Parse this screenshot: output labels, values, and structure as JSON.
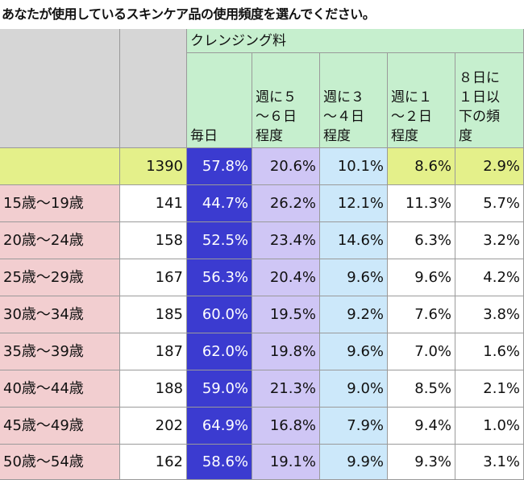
{
  "title": "あなたが使用しているスキンケア品の使用頻度を選んでください。",
  "group_header": "クレンジング料",
  "columns": [
    "毎日",
    "週に５～６日程度",
    "週に３～４日程度",
    "週に１～２日程度",
    "８日に１日以下の頻度"
  ],
  "column_lines": [
    [
      "毎日"
    ],
    [
      "週に５",
      "～６日",
      "程度"
    ],
    [
      "週に３",
      "～４日",
      "程度"
    ],
    [
      "週に１",
      "～２日",
      "程度"
    ],
    [
      "８日に",
      "１日以",
      "下の頻",
      "度"
    ]
  ],
  "total_row": {
    "n": "1390",
    "values": [
      "57.8%",
      "20.6%",
      "10.1%",
      "8.6%",
      "2.9%"
    ]
  },
  "rows": [
    {
      "label": "15歳～19歳",
      "n": "141",
      "values": [
        "44.7%",
        "26.2%",
        "12.1%",
        "11.3%",
        "5.7%"
      ]
    },
    {
      "label": "20歳～24歳",
      "n": "158",
      "values": [
        "52.5%",
        "23.4%",
        "14.6%",
        "6.3%",
        "3.2%"
      ]
    },
    {
      "label": "25歳～29歳",
      "n": "167",
      "values": [
        "56.3%",
        "20.4%",
        "9.6%",
        "9.6%",
        "4.2%"
      ]
    },
    {
      "label": "30歳～34歳",
      "n": "185",
      "values": [
        "60.0%",
        "19.5%",
        "9.2%",
        "7.6%",
        "3.8%"
      ]
    },
    {
      "label": "35歳～39歳",
      "n": "187",
      "values": [
        "62.0%",
        "19.8%",
        "9.6%",
        "7.0%",
        "1.6%"
      ]
    },
    {
      "label": "40歳～44歳",
      "n": "188",
      "values": [
        "59.0%",
        "21.3%",
        "9.0%",
        "8.5%",
        "2.1%"
      ]
    },
    {
      "label": "45歳～49歳",
      "n": "202",
      "values": [
        "64.9%",
        "16.8%",
        "7.9%",
        "9.4%",
        "1.0%"
      ]
    },
    {
      "label": "50歳～54歳",
      "n": "162",
      "values": [
        "58.6%",
        "19.1%",
        "9.9%",
        "9.3%",
        "3.1%"
      ]
    }
  ],
  "colors": {
    "header_green": "#c6efce",
    "total_row_yellow": "#e4f08a",
    "row_label_pink": "#f2ced0",
    "blank_gray": "#d6d6d6",
    "col1_fill": "#3b3bd0",
    "col2_fill": "#cfc6f5",
    "col3_fill": "#cce8fa",
    "col1_text": "#ffffff"
  }
}
